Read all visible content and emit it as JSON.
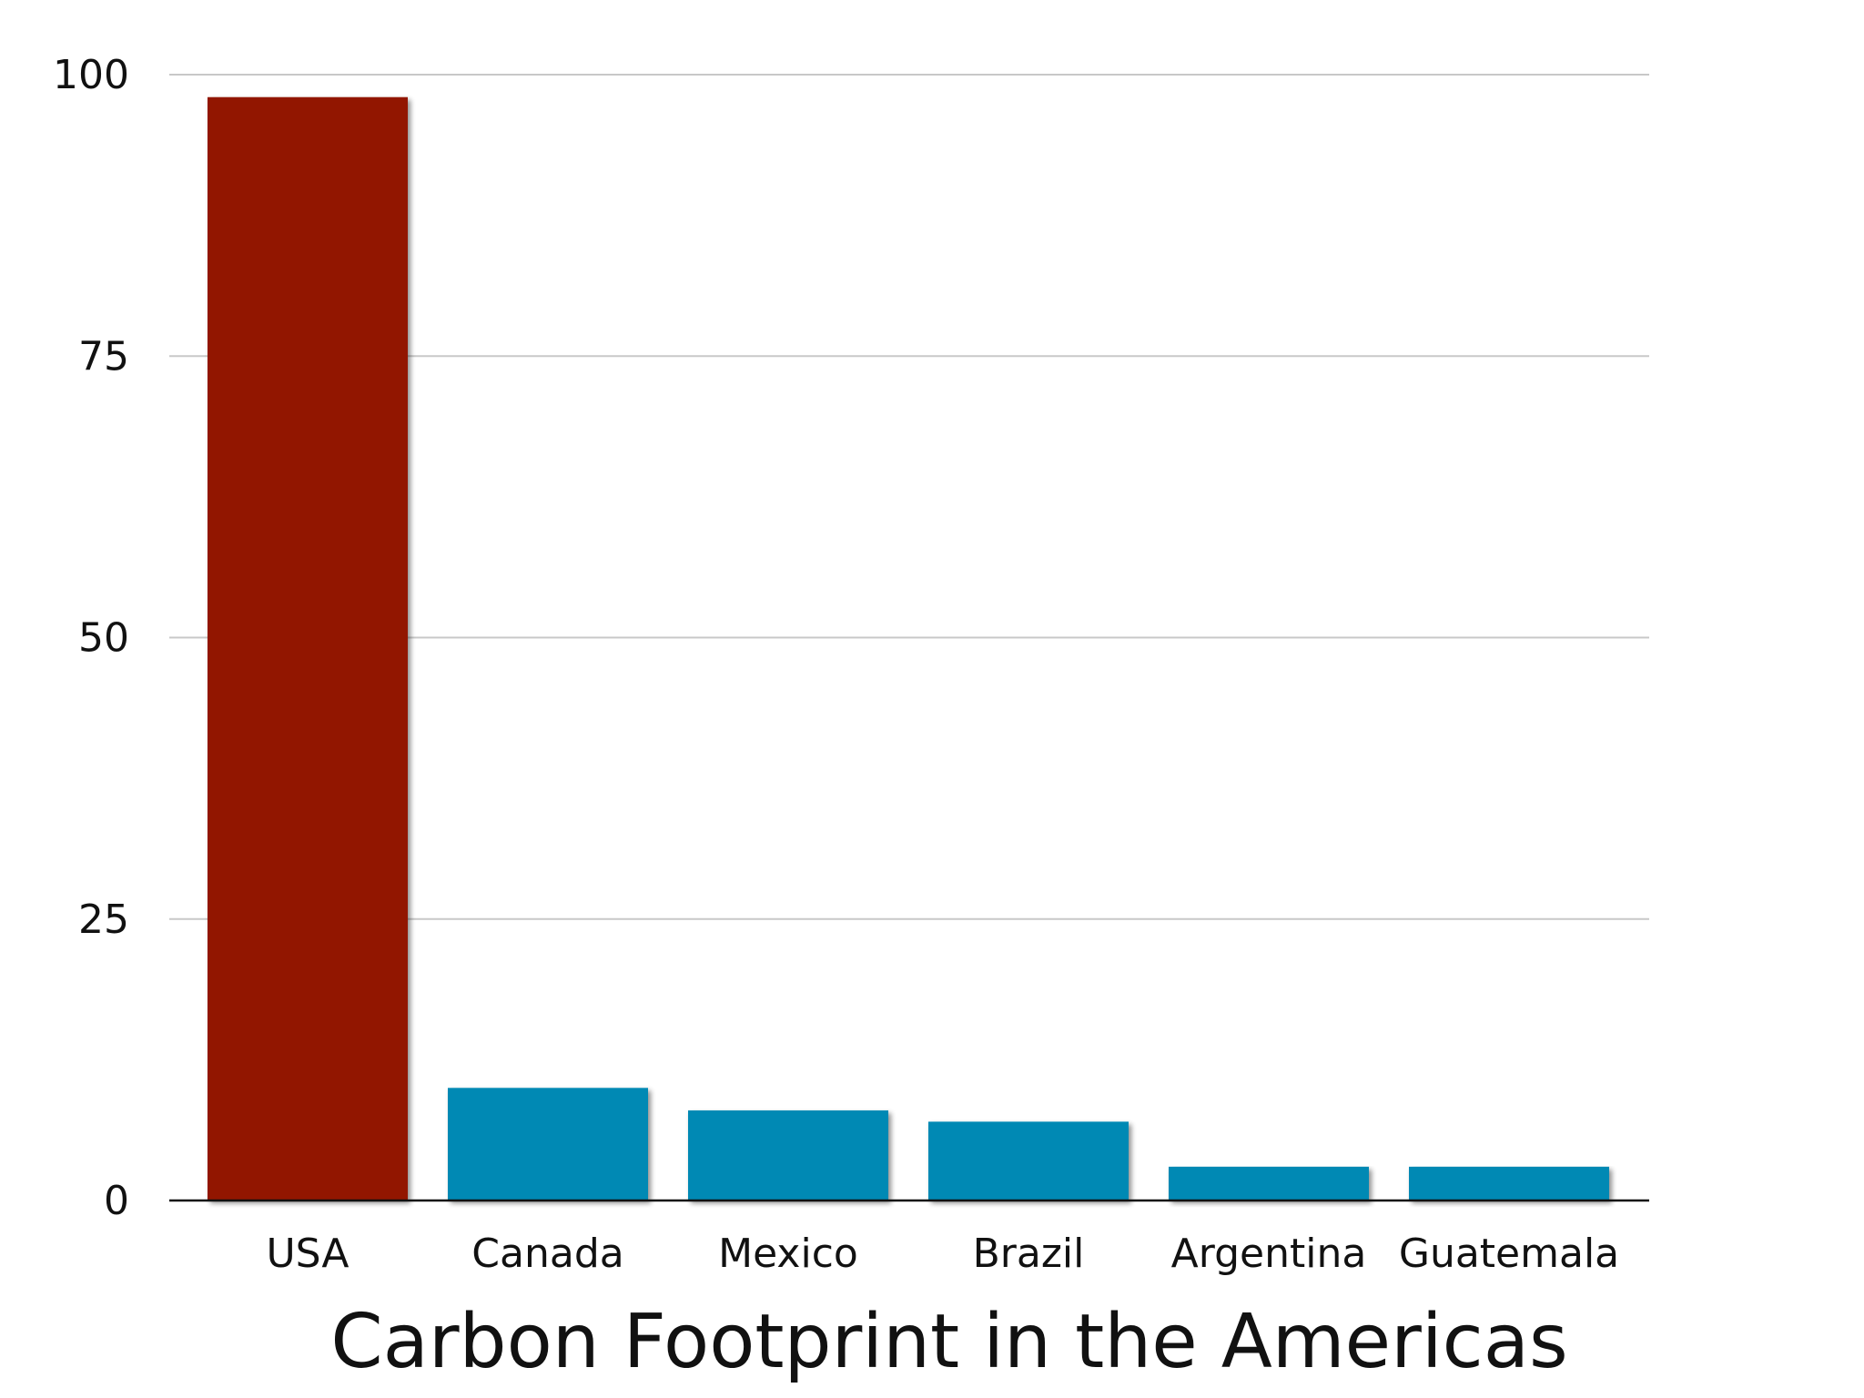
{
  "chart_data": {
    "type": "bar",
    "title": "Carbon Footprint in the Americas",
    "categories": [
      "USA",
      "Canada",
      "Mexico",
      "Brazil",
      "Argentina",
      "Guatemala"
    ],
    "values": [
      98,
      10,
      8,
      7,
      3,
      3
    ],
    "bar_colors": [
      "#921400",
      "#0389b4",
      "#0389b4",
      "#0389b4",
      "#0389b4",
      "#0389b4"
    ],
    "ylim": [
      0,
      100
    ],
    "yticks": [
      0,
      25,
      50,
      75,
      100
    ],
    "grid": true,
    "legend": "none"
  }
}
